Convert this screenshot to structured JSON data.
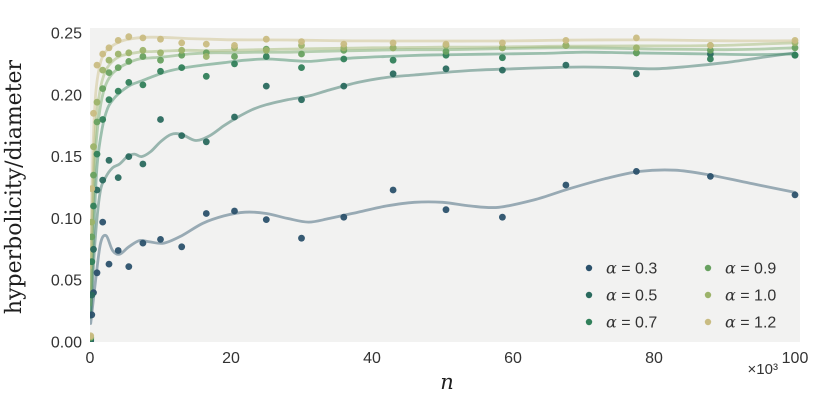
{
  "figure": {
    "background": "#ffffff",
    "plot_background": "#f2f2f1",
    "text_color": "#333333"
  },
  "chart_data": {
    "type": "scatter",
    "title": "",
    "xlabel": "n",
    "ylabel": "hyperbolicity/diameter",
    "x_offset_text": "×10³",
    "xlim": [
      0,
      100
    ],
    "ylim": [
      0,
      0.25
    ],
    "xticks": [
      "0",
      "20",
      "40",
      "60",
      "80",
      "100"
    ],
    "xtick_values": [
      0,
      20,
      40,
      60,
      80,
      100
    ],
    "yticks": [
      "0.00",
      "0.05",
      "0.10",
      "0.15",
      "0.20",
      "0.25"
    ],
    "ytick_values": [
      0,
      0.05,
      0.1,
      0.15,
      0.2,
      0.25
    ],
    "grid": false,
    "legend_position": "lower right",
    "legend_columns": 2,
    "x_thousands": [
      0.1,
      0.25,
      0.5,
      1,
      1.8,
      2.7,
      4,
      5.5,
      7.5,
      10,
      13,
      16.5,
      20.5,
      25,
      30,
      36,
      43,
      50.5,
      58.5,
      67.5,
      77.5,
      88,
      100
    ],
    "series": [
      {
        "name": "α = 0.3",
        "alpha": 0.3,
        "color": "#2b516b",
        "values": [
          0.001,
          0.022,
          0.04,
          0.056,
          0.097,
          0.063,
          0.074,
          0.061,
          0.08,
          0.083,
          0.077,
          0.104,
          0.106,
          0.099,
          0.084,
          0.101,
          0.123,
          0.107,
          0.101,
          0.127,
          0.138,
          0.134,
          0.119
        ],
        "trend": [
          [
            0.1,
            0.015
          ],
          [
            0.8,
            0.05
          ],
          [
            1.5,
            0.08
          ],
          [
            2.3,
            0.086
          ],
          [
            3.2,
            0.074
          ],
          [
            4.2,
            0.071
          ],
          [
            5.5,
            0.077
          ],
          [
            7,
            0.082
          ],
          [
            8.5,
            0.081
          ],
          [
            10.5,
            0.08
          ],
          [
            13,
            0.086
          ],
          [
            16,
            0.096
          ],
          [
            19,
            0.102
          ],
          [
            22,
            0.105
          ],
          [
            25,
            0.104
          ],
          [
            28,
            0.1
          ],
          [
            31,
            0.097
          ],
          [
            34,
            0.1
          ],
          [
            38,
            0.105
          ],
          [
            42,
            0.11
          ],
          [
            46,
            0.113
          ],
          [
            50,
            0.113
          ],
          [
            54,
            0.11
          ],
          [
            58,
            0.109
          ],
          [
            63,
            0.115
          ],
          [
            68,
            0.124
          ],
          [
            73,
            0.132
          ],
          [
            78,
            0.138
          ],
          [
            83,
            0.139
          ],
          [
            88,
            0.135
          ],
          [
            94,
            0.128
          ],
          [
            100,
            0.121
          ]
        ]
      },
      {
        "name": "α = 0.5",
        "alpha": 0.5,
        "color": "#2a6a5e",
        "values": [
          0.002,
          0.038,
          0.075,
          0.123,
          0.131,
          0.147,
          0.133,
          0.15,
          0.144,
          0.18,
          0.167,
          0.162,
          0.182,
          0.207,
          0.196,
          0.207,
          0.217,
          0.221,
          0.22,
          0.224,
          0.217,
          0.233,
          0.232
        ],
        "trend": [
          [
            0.1,
            0.02
          ],
          [
            0.7,
            0.08
          ],
          [
            1.4,
            0.12
          ],
          [
            2.2,
            0.133
          ],
          [
            3.2,
            0.141
          ],
          [
            4.2,
            0.144
          ],
          [
            5.3,
            0.15
          ],
          [
            6.3,
            0.152
          ],
          [
            7.3,
            0.15
          ],
          [
            8.6,
            0.154
          ],
          [
            10,
            0.162
          ],
          [
            11.5,
            0.168
          ],
          [
            13,
            0.168
          ],
          [
            15,
            0.163
          ],
          [
            17,
            0.167
          ],
          [
            19,
            0.175
          ],
          [
            21,
            0.182
          ],
          [
            23,
            0.188
          ],
          [
            25,
            0.192
          ],
          [
            28,
            0.196
          ],
          [
            31,
            0.199
          ],
          [
            34,
            0.204
          ],
          [
            38,
            0.21
          ],
          [
            42,
            0.214
          ],
          [
            46,
            0.216
          ],
          [
            50,
            0.218
          ],
          [
            55,
            0.22
          ],
          [
            60,
            0.221
          ],
          [
            65,
            0.222
          ],
          [
            70,
            0.2225
          ],
          [
            75,
            0.222
          ],
          [
            80,
            0.221
          ],
          [
            85,
            0.223
          ],
          [
            90,
            0.226
          ],
          [
            95,
            0.23
          ],
          [
            100,
            0.234
          ]
        ]
      },
      {
        "name": "α = 0.7",
        "alpha": 0.7,
        "color": "#31805a",
        "values": [
          0.003,
          0.065,
          0.11,
          0.152,
          0.18,
          0.196,
          0.203,
          0.21,
          0.208,
          0.219,
          0.222,
          0.215,
          0.225,
          0.231,
          0.222,
          0.229,
          0.228,
          0.232,
          0.23,
          0.24,
          0.234,
          0.229,
          0.232
        ],
        "trend": [
          [
            0.1,
            0.02
          ],
          [
            0.5,
            0.085
          ],
          [
            1,
            0.142
          ],
          [
            1.7,
            0.172
          ],
          [
            2.5,
            0.189
          ],
          [
            3.4,
            0.197
          ],
          [
            4.5,
            0.203
          ],
          [
            5.8,
            0.208
          ],
          [
            7.2,
            0.211
          ],
          [
            9,
            0.215
          ],
          [
            11,
            0.219
          ],
          [
            13.5,
            0.222
          ],
          [
            16,
            0.224
          ],
          [
            19,
            0.226
          ],
          [
            22,
            0.228
          ],
          [
            25,
            0.229
          ],
          [
            28,
            0.228
          ],
          [
            31,
            0.227
          ],
          [
            34,
            0.2285
          ],
          [
            38,
            0.23
          ],
          [
            42,
            0.231
          ],
          [
            47,
            0.232
          ],
          [
            52,
            0.2325
          ],
          [
            58,
            0.233
          ],
          [
            64,
            0.2335
          ],
          [
            70,
            0.2345
          ],
          [
            76,
            0.234
          ],
          [
            82,
            0.2335
          ],
          [
            88,
            0.233
          ],
          [
            94,
            0.2325
          ],
          [
            100,
            0.233
          ]
        ]
      },
      {
        "name": "α = 0.9",
        "alpha": 0.9,
        "color": "#68a160",
        "values": [
          0.004,
          0.085,
          0.135,
          0.178,
          0.205,
          0.218,
          0.222,
          0.227,
          0.231,
          0.228,
          0.232,
          0.234,
          0.231,
          0.237,
          0.233,
          0.236,
          0.238,
          0.235,
          0.238,
          0.24,
          0.234,
          0.236,
          0.238
        ],
        "trend": [
          [
            0.1,
            0.03
          ],
          [
            0.4,
            0.1
          ],
          [
            0.8,
            0.155
          ],
          [
            1.4,
            0.188
          ],
          [
            2.1,
            0.206
          ],
          [
            3,
            0.216
          ],
          [
            4.2,
            0.222
          ],
          [
            5.5,
            0.226
          ],
          [
            7,
            0.229
          ],
          [
            9,
            0.23
          ],
          [
            11,
            0.231
          ],
          [
            14,
            0.233
          ],
          [
            17,
            0.234
          ],
          [
            20,
            0.234
          ],
          [
            24,
            0.2345
          ],
          [
            28,
            0.2345
          ],
          [
            32,
            0.235
          ],
          [
            36,
            0.2355
          ],
          [
            40,
            0.236
          ],
          [
            45,
            0.2365
          ],
          [
            50,
            0.2365
          ],
          [
            55,
            0.237
          ],
          [
            60,
            0.2375
          ],
          [
            65,
            0.238
          ],
          [
            70,
            0.238
          ],
          [
            75,
            0.2375
          ],
          [
            80,
            0.237
          ],
          [
            85,
            0.2367
          ],
          [
            90,
            0.2365
          ],
          [
            95,
            0.237
          ],
          [
            100,
            0.238
          ]
        ]
      },
      {
        "name": "α = 1.0",
        "alpha": 1.0,
        "color": "#9cb36a",
        "values": [
          0.004,
          0.097,
          0.158,
          0.194,
          0.22,
          0.228,
          0.233,
          0.234,
          0.236,
          0.234,
          0.236,
          0.231,
          0.238,
          0.236,
          0.24,
          0.238,
          0.238,
          0.24,
          0.238,
          0.24,
          0.238,
          0.24,
          0.242
        ],
        "trend": [
          [
            0.1,
            0.04
          ],
          [
            0.4,
            0.12
          ],
          [
            0.8,
            0.175
          ],
          [
            1.4,
            0.203
          ],
          [
            2.1,
            0.218
          ],
          [
            3,
            0.226
          ],
          [
            4.2,
            0.231
          ],
          [
            5.5,
            0.233
          ],
          [
            7,
            0.2345
          ],
          [
            9,
            0.235
          ],
          [
            11,
            0.2355
          ],
          [
            14,
            0.236
          ],
          [
            17,
            0.2357
          ],
          [
            20,
            0.236
          ],
          [
            24,
            0.2365
          ],
          [
            28,
            0.237
          ],
          [
            32,
            0.2373
          ],
          [
            36,
            0.2376
          ],
          [
            40,
            0.238
          ],
          [
            45,
            0.2383
          ],
          [
            50,
            0.2385
          ],
          [
            55,
            0.2386
          ],
          [
            60,
            0.2388
          ],
          [
            65,
            0.2392
          ],
          [
            70,
            0.2394
          ],
          [
            75,
            0.2395
          ],
          [
            80,
            0.2396
          ],
          [
            85,
            0.2396
          ],
          [
            90,
            0.24
          ],
          [
            95,
            0.241
          ],
          [
            100,
            0.242
          ]
        ]
      },
      {
        "name": "α = 1.2",
        "alpha": 1.2,
        "color": "#c9bc82",
        "values": [
          0.005,
          0.124,
          0.185,
          0.224,
          0.233,
          0.238,
          0.244,
          0.247,
          0.246,
          0.245,
          0.242,
          0.241,
          0.24,
          0.245,
          0.243,
          0.241,
          0.242,
          0.241,
          0.242,
          0.244,
          0.246,
          0.24,
          0.244
        ],
        "trend": [
          [
            0.1,
            0.06
          ],
          [
            0.4,
            0.15
          ],
          [
            0.8,
            0.2
          ],
          [
            1.4,
            0.224
          ],
          [
            2.1,
            0.234
          ],
          [
            3,
            0.239
          ],
          [
            4.5,
            0.2435
          ],
          [
            6,
            0.2455
          ],
          [
            8,
            0.2465
          ],
          [
            10,
            0.2465
          ],
          [
            12,
            0.246
          ],
          [
            14,
            0.2455
          ],
          [
            17,
            0.245
          ],
          [
            20,
            0.2445
          ],
          [
            24,
            0.2444
          ],
          [
            28,
            0.2443
          ],
          [
            32,
            0.244
          ],
          [
            36,
            0.2437
          ],
          [
            40,
            0.2436
          ],
          [
            45,
            0.2435
          ],
          [
            50,
            0.2435
          ],
          [
            55,
            0.2435
          ],
          [
            60,
            0.2436
          ],
          [
            65,
            0.244
          ],
          [
            70,
            0.2443
          ],
          [
            75,
            0.2444
          ],
          [
            80,
            0.2444
          ],
          [
            85,
            0.244
          ],
          [
            90,
            0.2437
          ],
          [
            95,
            0.2436
          ],
          [
            100,
            0.2437
          ]
        ]
      }
    ]
  }
}
